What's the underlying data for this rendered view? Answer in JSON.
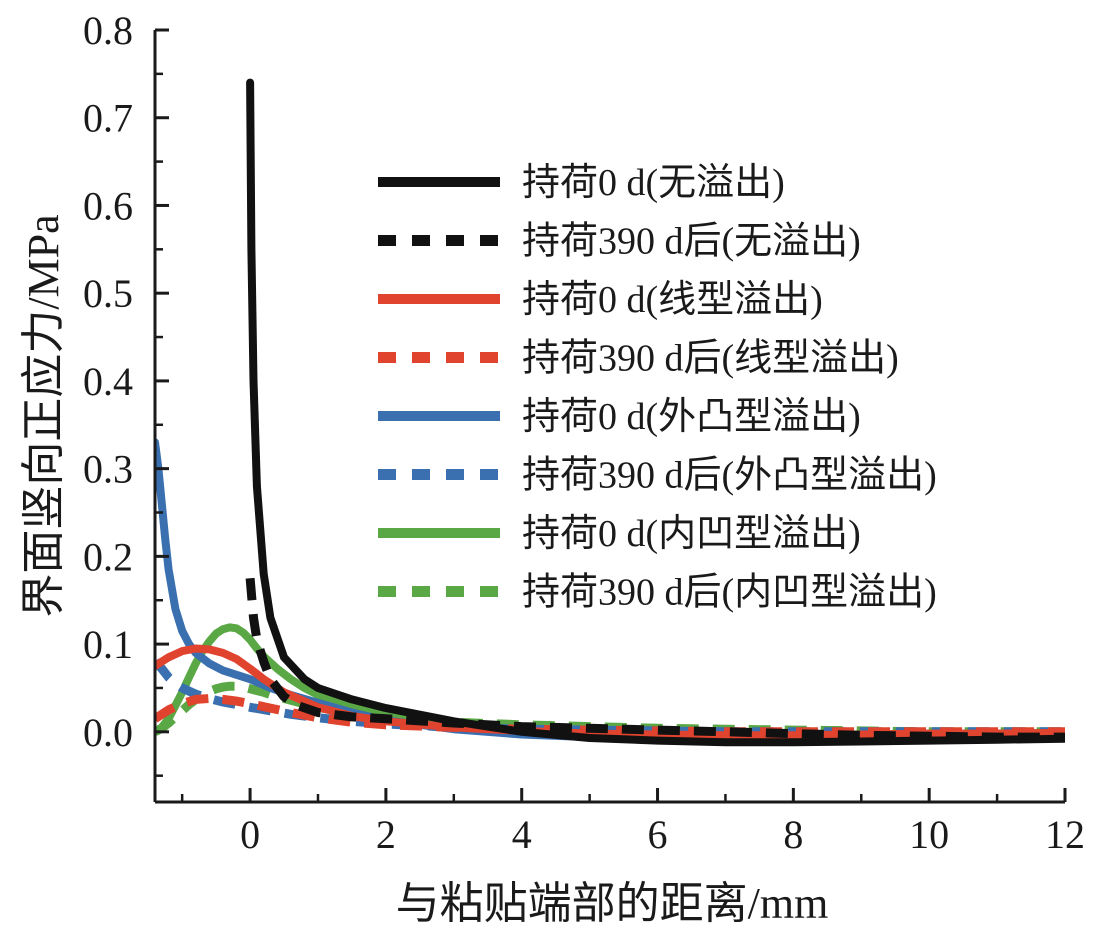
{
  "chart_data": {
    "type": "line",
    "xlabel": "与粘贴端部的距离/mm",
    "ylabel": "界面竖向正应力/MPa",
    "xlim": [
      -1.4,
      12
    ],
    "ylim": [
      -0.08,
      0.8
    ],
    "xticks": [
      "0",
      "2",
      "4",
      "6",
      "8",
      "10",
      "12"
    ],
    "xtick_values": [
      0,
      2,
      4,
      6,
      8,
      10,
      12
    ],
    "yticks": [
      "0.0",
      "0.1",
      "0.2",
      "0.3",
      "0.4",
      "0.5",
      "0.6",
      "0.7",
      "0.8"
    ],
    "ytick_values": [
      0,
      0.1,
      0.2,
      0.3,
      0.4,
      0.5,
      0.6,
      0.7,
      0.8
    ],
    "legend_position": "top-right",
    "series": [
      {
        "name": "持荷0 d(无溢出)",
        "color": "#111111",
        "dash": "solid",
        "x": [
          0,
          0.02,
          0.05,
          0.1,
          0.2,
          0.3,
          0.5,
          0.8,
          1.0,
          1.5,
          2.0,
          3.0,
          4.0,
          5.0,
          6.0,
          7.0,
          8.0,
          9.0,
          10.0,
          11.0,
          12.0
        ],
        "y": [
          0.74,
          0.55,
          0.4,
          0.28,
          0.18,
          0.13,
          0.085,
          0.06,
          0.05,
          0.037,
          0.027,
          0.012,
          0.0,
          -0.007,
          -0.01,
          -0.012,
          -0.012,
          -0.011,
          -0.01,
          -0.009,
          -0.008
        ]
      },
      {
        "name": "持荷390 d后(无溢出)",
        "color": "#111111",
        "dash": "dashed",
        "x": [
          0,
          0.05,
          0.1,
          0.2,
          0.3,
          0.5,
          0.7,
          1.0,
          1.5,
          2.0,
          3.0,
          4.0,
          5.0,
          6.0,
          7.0,
          8.0,
          9.0,
          10.0,
          11.0,
          12.0
        ],
        "y": [
          0.175,
          0.13,
          0.105,
          0.08,
          0.06,
          0.04,
          0.03,
          0.022,
          0.017,
          0.015,
          0.01,
          0.006,
          0.004,
          0.002,
          0.0,
          -0.002,
          -0.004,
          -0.005,
          -0.006,
          -0.006
        ]
      },
      {
        "name": "持荷0 d(线型溢出)",
        "color": "#e0432e",
        "dash": "solid",
        "x": [
          -1.4,
          -1.2,
          -1.0,
          -0.8,
          -0.6,
          -0.4,
          -0.2,
          0.0,
          0.2,
          0.5,
          1.0,
          1.5,
          2.0,
          3.0,
          4.0,
          5.0,
          6.0,
          7.0,
          8.0,
          9.0,
          10.0,
          11.0,
          12.0
        ],
        "y": [
          0.075,
          0.085,
          0.092,
          0.095,
          0.094,
          0.09,
          0.083,
          0.072,
          0.06,
          0.045,
          0.028,
          0.018,
          0.012,
          0.005,
          0.001,
          -0.002,
          -0.003,
          -0.004,
          -0.004,
          -0.003,
          -0.002,
          -0.002,
          -0.001
        ]
      },
      {
        "name": "持荷390 d后(线型溢出)",
        "color": "#e0432e",
        "dash": "dashed",
        "x": [
          -1.4,
          -1.2,
          -1.0,
          -0.8,
          -0.6,
          -0.4,
          -0.2,
          0.0,
          0.3,
          0.6,
          1.0,
          1.5,
          2.0,
          3.0,
          4.0,
          5.0,
          6.0,
          7.0,
          8.0,
          9.0,
          10.0,
          11.0,
          12.0
        ],
        "y": [
          0.015,
          0.025,
          0.032,
          0.037,
          0.038,
          0.037,
          0.035,
          0.032,
          0.027,
          0.022,
          0.016,
          0.011,
          0.008,
          0.005,
          0.003,
          0.002,
          0.001,
          0.0,
          0.0,
          0.0,
          0.0,
          0.0,
          0.0
        ]
      },
      {
        "name": "持荷0 d(外凸型溢出)",
        "color": "#3a6fb0",
        "dash": "solid",
        "x": [
          -1.4,
          -1.35,
          -1.3,
          -1.25,
          -1.2,
          -1.1,
          -1.0,
          -0.9,
          -0.8,
          -0.6,
          -0.4,
          -0.2,
          0.0,
          0.3,
          0.6,
          1.0,
          1.5,
          2.0,
          3.0,
          4.0,
          5.0,
          6.0,
          7.0,
          8.0,
          9.0,
          10.0,
          11.0,
          12.0
        ],
        "y": [
          0.33,
          0.3,
          0.26,
          0.22,
          0.185,
          0.14,
          0.115,
          0.1,
          0.09,
          0.078,
          0.07,
          0.065,
          0.06,
          0.05,
          0.042,
          0.033,
          0.022,
          0.013,
          0.003,
          -0.003,
          -0.006,
          -0.008,
          -0.008,
          -0.007,
          -0.006,
          -0.005,
          -0.004,
          -0.003
        ]
      },
      {
        "name": "持荷390 d后(外凸型溢出)",
        "color": "#3a6fb0",
        "dash": "dashed",
        "x": [
          -1.4,
          -1.3,
          -1.2,
          -1.1,
          -1.0,
          -0.8,
          -0.6,
          -0.4,
          -0.2,
          0.0,
          0.3,
          0.6,
          1.0,
          1.5,
          2.0,
          3.0,
          4.0,
          5.0,
          6.0,
          7.0,
          8.0,
          9.0,
          10.0,
          11.0,
          12.0
        ],
        "y": [
          0.08,
          0.072,
          0.062,
          0.055,
          0.05,
          0.043,
          0.038,
          0.034,
          0.031,
          0.028,
          0.024,
          0.02,
          0.016,
          0.012,
          0.009,
          0.005,
          0.003,
          0.002,
          0.001,
          0.0,
          0.0,
          0.0,
          0.0,
          0.0,
          0.0
        ]
      },
      {
        "name": "持荷0 d(内凹型溢出)",
        "color": "#5aa845",
        "dash": "solid",
        "x": [
          -1.4,
          -1.3,
          -1.2,
          -1.1,
          -1.0,
          -0.9,
          -0.8,
          -0.7,
          -0.6,
          -0.5,
          -0.4,
          -0.3,
          -0.2,
          -0.1,
          0.0,
          0.1,
          0.2,
          0.4,
          0.6,
          0.8,
          1.0,
          1.5,
          2.0,
          3.0,
          4.0,
          5.0,
          6.0,
          7.0,
          8.0,
          9.0,
          10.0,
          11.0,
          12.0
        ],
        "y": [
          0.0,
          0.005,
          0.015,
          0.03,
          0.045,
          0.062,
          0.078,
          0.092,
          0.103,
          0.112,
          0.117,
          0.119,
          0.118,
          0.113,
          0.105,
          0.095,
          0.086,
          0.072,
          0.06,
          0.05,
          0.042,
          0.028,
          0.018,
          0.006,
          0.0,
          -0.004,
          -0.005,
          -0.005,
          -0.004,
          -0.003,
          -0.002,
          -0.002,
          -0.001
        ]
      },
      {
        "name": "持荷390 d后(内凹型溢出)",
        "color": "#5aa845",
        "dash": "dashed",
        "x": [
          -1.4,
          -1.3,
          -1.2,
          -1.1,
          -1.0,
          -0.9,
          -0.8,
          -0.7,
          -0.6,
          -0.5,
          -0.4,
          -0.3,
          -0.2,
          -0.1,
          0.0,
          0.2,
          0.4,
          0.7,
          1.0,
          1.5,
          2.0,
          3.0,
          4.0,
          5.0,
          6.0,
          7.0,
          8.0,
          9.0,
          10.0,
          11.0,
          12.0
        ],
        "y": [
          0.0,
          0.004,
          0.01,
          0.017,
          0.024,
          0.031,
          0.037,
          0.042,
          0.046,
          0.049,
          0.051,
          0.052,
          0.052,
          0.051,
          0.049,
          0.045,
          0.04,
          0.034,
          0.028,
          0.021,
          0.016,
          0.011,
          0.008,
          0.006,
          0.004,
          0.003,
          0.002,
          0.001,
          0.0,
          0.0,
          0.0
        ]
      }
    ]
  }
}
